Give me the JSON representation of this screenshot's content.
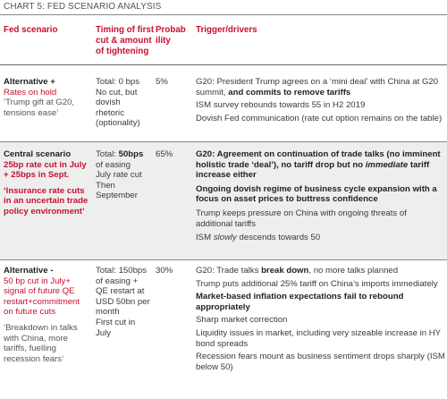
{
  "title": "CHART 5: FED SCENARIO ANALYSIS",
  "headers": {
    "scenario": "Fed scenario",
    "timing": "Timing of first cut & amount of tightening",
    "prob": "Probab ility",
    "trigger": "Trigger/drivers"
  },
  "rows": [
    {
      "scenario_label": "Alternative +",
      "scenario_sub": "Rates on hold",
      "scenario_quote": "‘Trump gift at G20, tensions ease’",
      "timing_lines": [
        "Total: 0 bps",
        "No cut, but dovish rhetoric (optionality)"
      ],
      "prob": "5%",
      "drivers": [
        {
          "pre": "G20: President Trump agrees on a ‘mini deal’ with China at G20 summit, ",
          "bold": "and commits to remove tariffs",
          "post": ""
        },
        {
          "pre": "ISM survey rebounds towards 55 in H2 2019",
          "bold": "",
          "post": ""
        },
        {
          "pre": "Dovish Fed communication (rate cut option remains on the table)",
          "bold": "",
          "post": ""
        }
      ]
    },
    {
      "scenario_label": "Central scenario",
      "scenario_sub": "25bp rate cut in July + 25bps in Sept.",
      "scenario_quote": "‘Insurance rate cuts in an uncertain trade policy environment’",
      "timing_lines": [
        "Total: ",
        "50bps",
        " of easing",
        "July rate cut Then September"
      ],
      "prob": "65%",
      "drivers": [
        {
          "pre": "",
          "bold": "G20: Agreement on continuation of trade talks (no imminent holistic trade ‘deal’), no tariff drop but no ",
          "boldital": "immediate",
          "post": " tariff increase either"
        },
        {
          "pre": "",
          "bold": "Ongoing dovish regime of business cycle expansion with a focus on asset prices to buttress confidence",
          "post": ""
        },
        {
          "pre": "Trump keeps pressure on China with ongoing threats of additional tariffs",
          "bold": "",
          "post": ""
        },
        {
          "pre": "ISM ",
          "ital": "slowly",
          "post": " descends towards 50"
        }
      ]
    },
    {
      "scenario_label": "Alternative -",
      "scenario_sub": "50 bp cut in July+ signal of future QE restart+commitment on future cuts",
      "scenario_quote": "‘Breakdown in talks with China, more tariffs, fuelling recession fears’",
      "timing_lines": [
        "Total: 150bps of easing + QE restart at USD 50bn per month",
        "First cut in July"
      ],
      "prob": "30%",
      "drivers": [
        {
          "pre": "G20: Trade talks ",
          "bold": "break down",
          "post": ", no more talks planned"
        },
        {
          "pre": "Trump puts additional 25% tariff on China’s imports immediately",
          "bold": "",
          "post": ""
        },
        {
          "pre": "",
          "bold": "Market-based inflation expectations fail to rebound appropriately",
          "post": ""
        },
        {
          "pre": "Sharp market correction",
          "bold": "",
          "post": ""
        },
        {
          "pre": "Liquidity issues in market, including very sizeable increase in HY bond spreads",
          "bold": "",
          "post": ""
        },
        {
          "pre": "Recession fears mount as business sentiment drops sharply (ISM below 50)",
          "bold": "",
          "post": ""
        }
      ]
    }
  ]
}
